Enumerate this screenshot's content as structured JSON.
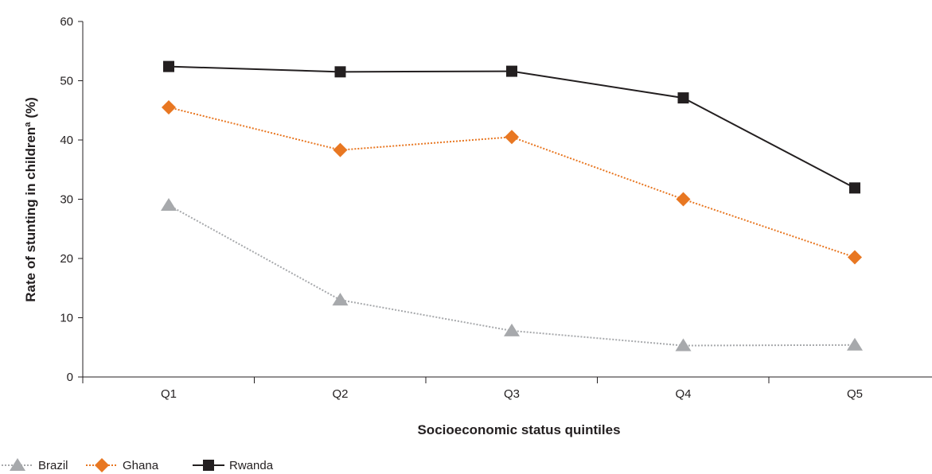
{
  "chart_data": {
    "type": "line",
    "title": "",
    "xlabel": "Socioeconomic status quintiles",
    "ylabel": "Rate of stunting in childrenª (%)",
    "categories": [
      "Q1",
      "Q2",
      "Q3",
      "Q4",
      "Q5"
    ],
    "ylim": [
      0,
      60
    ],
    "yticks": [
      "0",
      "10",
      "20",
      "30",
      "40",
      "50",
      "60"
    ],
    "grid": false,
    "legend_position": "bottom-left",
    "series": [
      {
        "name": "Brazil",
        "values": [
          29.0,
          13.0,
          7.8,
          5.3,
          5.4
        ],
        "color": "#a7a9ac",
        "marker": "triangle",
        "line_style": "dotted"
      },
      {
        "name": "Ghana",
        "values": [
          45.5,
          38.3,
          40.5,
          30.0,
          20.2
        ],
        "color": "#e87722",
        "marker": "diamond",
        "line_style": "dotted"
      },
      {
        "name": "Rwanda",
        "values": [
          52.4,
          51.5,
          51.6,
          47.1,
          31.9
        ],
        "color": "#231f20",
        "marker": "square",
        "line_style": "solid"
      }
    ]
  }
}
